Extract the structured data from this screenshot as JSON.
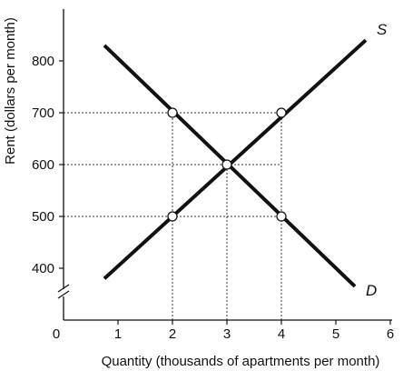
{
  "chart_data": {
    "type": "line",
    "xlabel": "Quantity (thousands of apartments per month)",
    "ylabel": "Rent (dollars per month)",
    "xlim": [
      0,
      6
    ],
    "ylim": [
      300,
      900
    ],
    "x_ticks": [
      0,
      1,
      2,
      3,
      4,
      5,
      6
    ],
    "y_ticks": [
      400,
      500,
      600,
      700,
      800
    ],
    "axis_break_on_y": true,
    "grid": false,
    "series": [
      {
        "name": "S",
        "x": [
          0.75,
          5.55
        ],
        "y": [
          380,
          840
        ]
      },
      {
        "name": "D",
        "x": [
          0.75,
          5.35
        ],
        "y": [
          830,
          365
        ]
      }
    ],
    "marked_points": [
      {
        "x": 2,
        "y": 700
      },
      {
        "x": 4,
        "y": 700
      },
      {
        "x": 3,
        "y": 600
      },
      {
        "x": 2,
        "y": 500
      },
      {
        "x": 4,
        "y": 500
      }
    ],
    "reference_lines": [
      {
        "from": [
          0,
          700
        ],
        "to": [
          4,
          700
        ]
      },
      {
        "from": [
          0,
          600
        ],
        "to": [
          4,
          600
        ]
      },
      {
        "from": [
          0,
          500
        ],
        "to": [
          4,
          500
        ]
      },
      {
        "from": [
          2,
          300
        ],
        "to": [
          2,
          700
        ]
      },
      {
        "from": [
          3,
          300
        ],
        "to": [
          3,
          600
        ]
      },
      {
        "from": [
          4,
          300
        ],
        "to": [
          4,
          700
        ]
      }
    ]
  }
}
